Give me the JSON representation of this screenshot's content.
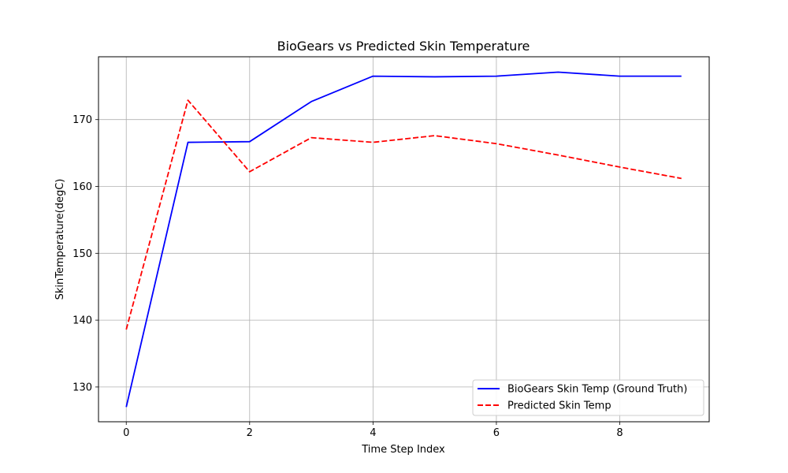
{
  "chart_data": {
    "type": "line",
    "title": "BioGears vs Predicted Skin Temperature",
    "xlabel": "Time Step Index",
    "ylabel": "SkinTemperature(degC)",
    "x": [
      0,
      1,
      2,
      3,
      4,
      5,
      6,
      7,
      8,
      9
    ],
    "xlim": [
      -0.45,
      9.45
    ],
    "ylim": [
      124.8,
      179.4
    ],
    "xticks": [
      0,
      2,
      4,
      6,
      8
    ],
    "yticks": [
      130,
      140,
      150,
      160,
      170
    ],
    "grid": true,
    "legend_position": "lower right",
    "series": [
      {
        "name": "BioGears Skin Temp (Ground Truth)",
        "color": "#0000ff",
        "style": "solid",
        "values": [
          127.0,
          166.6,
          166.7,
          172.7,
          176.5,
          176.4,
          176.5,
          177.1,
          176.5,
          176.5
        ]
      },
      {
        "name": "Predicted Skin Temp",
        "color": "#ff0000",
        "style": "dashed",
        "values": [
          138.6,
          172.9,
          162.2,
          167.3,
          166.6,
          167.6,
          166.4,
          164.7,
          162.9,
          161.2
        ]
      }
    ]
  }
}
